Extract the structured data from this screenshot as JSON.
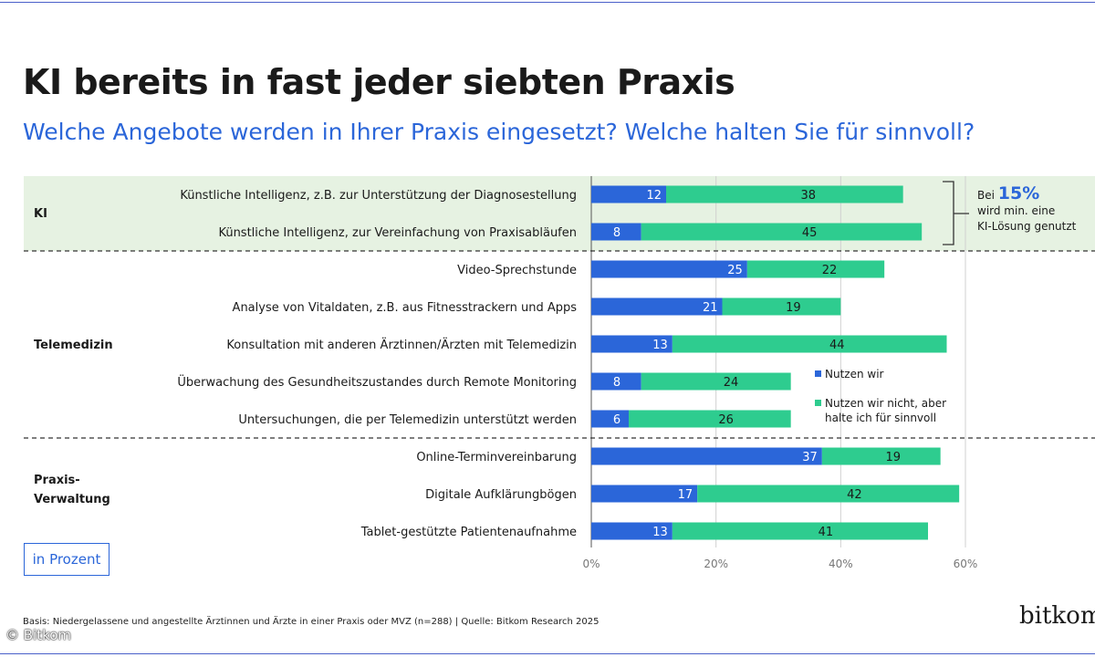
{
  "header": {
    "title": "KI bereits in fast jeder siebten Praxis",
    "subtitle": "Welche Angebote werden in Ihrer Praxis eingesetzt? Welche halten Sie für sinnvoll?"
  },
  "ki_note": {
    "prefix": "Bei",
    "percent": "15%",
    "line2": "wird min. eine",
    "line3": "KI-Lösung genutzt"
  },
  "unit_label": "in Prozent",
  "source": "Basis: Niedergelassene und angestellte Ärztinnen und Ärzte in einer Praxis oder MVZ (n=288) | Quelle: Bitkom Research 2025",
  "brand": "bitkom",
  "copyright": "© Bitkom",
  "colors": {
    "used": "#2b66d9",
    "useful": "#2ecc8f",
    "ki_band": "#e6f2e2",
    "grid": "#d0d0d0",
    "divider": "#333333"
  },
  "chart_data": {
    "type": "bar",
    "orientation": "horizontal",
    "stacked": true,
    "xlim": [
      0,
      60
    ],
    "xticks": [
      "0%",
      "20%",
      "40%",
      "60%"
    ],
    "xtick_values": [
      0,
      20,
      40,
      60
    ],
    "groups": [
      {
        "label": "KI",
        "category_count": 2
      },
      {
        "label": "Telemedizin",
        "category_count": 5
      },
      {
        "label": "Praxis-\nVerwaltung",
        "category_count": 3
      }
    ],
    "categories": [
      "Künstliche Intelligenz, z.B. zur Unterstützung der Diagnosestellung",
      "Künstliche Intelligenz, zur Vereinfachung von Praxisabläufen",
      "Video-Sprechstunde",
      "Analyse von Vitaldaten, z.B. aus Fitnesstrackern und Apps",
      "Konsultation mit anderen Ärztinnen/Ärzten mit Telemedizin",
      "Überwachung des Gesundheitszustandes durch Remote Monitoring",
      "Untersuchungen, die per Telemedizin unterstützt werden",
      "Online-Terminvereinbarung",
      "Digitale Aufklärungbögen",
      "Tablet-gestützte Patientenaufnahme"
    ],
    "series": [
      {
        "name": "Nutzen wir",
        "values": [
          12,
          8,
          25,
          21,
          13,
          8,
          6,
          37,
          17,
          13
        ]
      },
      {
        "name": "Nutzen wir nicht, aber halte ich für sinnvoll",
        "values": [
          38,
          45,
          22,
          19,
          44,
          24,
          26,
          19,
          42,
          41
        ]
      }
    ],
    "legend_placement": "right"
  }
}
